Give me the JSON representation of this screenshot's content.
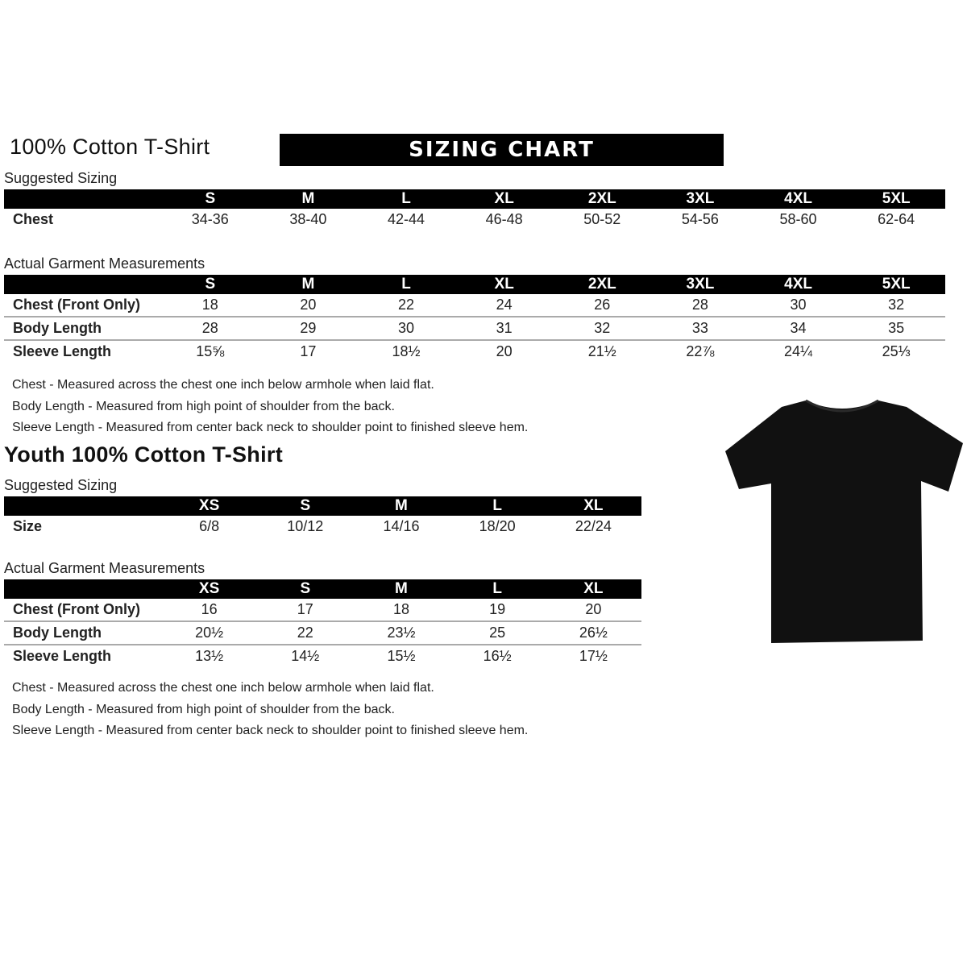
{
  "adult": {
    "title": "100% Cotton T-Shirt",
    "banner": "SIZING CHART",
    "suggested_label": "Suggested Sizing",
    "sizes": [
      "S",
      "M",
      "L",
      "XL",
      "2XL",
      "3XL",
      "4XL",
      "5XL"
    ],
    "suggested_rows": [
      {
        "label": "Chest",
        "values": [
          "34-36",
          "38-40",
          "42-44",
          "46-48",
          "50-52",
          "54-56",
          "58-60",
          "62-64"
        ]
      }
    ],
    "actual_label": "Actual Garment Measurements",
    "actual_rows": [
      {
        "label": "Chest (Front Only)",
        "values": [
          "18",
          "20",
          "22",
          "24",
          "26",
          "28",
          "30",
          "32"
        ]
      },
      {
        "label": "Body Length",
        "values": [
          "28",
          "29",
          "30",
          "31",
          "32",
          "33",
          "34",
          "35"
        ]
      },
      {
        "label": "Sleeve Length",
        "values": [
          "15⅝",
          "17",
          "18½",
          "20",
          "21½",
          "22⅞",
          "24¼",
          "25⅓"
        ]
      }
    ],
    "notes": [
      "Chest - Measured across the chest one inch below armhole when laid flat.",
      "Body Length - Measured from high point of shoulder from the back.",
      "Sleeve Length - Measured from center back neck to shoulder point to finished sleeve hem."
    ]
  },
  "youth": {
    "title": "Youth 100% Cotton T-Shirt",
    "suggested_label": "Suggested Sizing",
    "sizes": [
      "XS",
      "S",
      "M",
      "L",
      "XL"
    ],
    "suggested_rows": [
      {
        "label": "Size",
        "values": [
          "6/8",
          "10/12",
          "14/16",
          "18/20",
          "22/24"
        ]
      }
    ],
    "actual_label": "Actual Garment Measurements",
    "actual_rows": [
      {
        "label": "Chest (Front Only)",
        "values": [
          "16",
          "17",
          "18",
          "19",
          "20"
        ]
      },
      {
        "label": "Body Length",
        "values": [
          "20½",
          "22",
          "23½",
          "25",
          "26½"
        ]
      },
      {
        "label": "Sleeve Length",
        "values": [
          "13½",
          "14½",
          "15½",
          "16½",
          "17½"
        ]
      }
    ],
    "notes": [
      "Chest - Measured across the chest one inch below armhole when laid flat.",
      "Body Length - Measured from high point of shoulder from the back.",
      "Sleeve Length - Measured from center back neck to shoulder point to finished sleeve hem."
    ]
  },
  "colors": {
    "header_bg": "#000000",
    "shirt": "#111111"
  }
}
